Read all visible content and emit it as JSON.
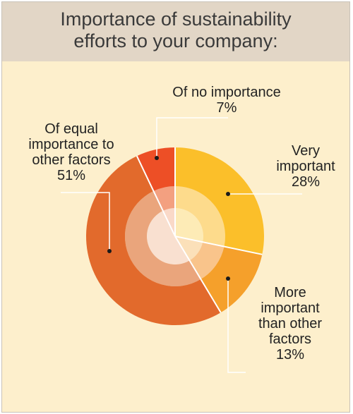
{
  "title_lines": [
    "Importance of sustainability",
    "efforts to your company:"
  ],
  "colors": {
    "header_bg": "#e2d6c6",
    "panel_bg": "#fdefcc",
    "leader_line": "#ffffff",
    "dot": "#1a1a1a"
  },
  "chart_data": {
    "type": "pie",
    "title": "Importance of sustainability efforts to your company:",
    "unit": "%",
    "slices": [
      {
        "name": "Very important",
        "label_lines": [
          "Very",
          "important"
        ],
        "value": 28,
        "value_label": "28%",
        "colors": [
          "#fdebb6",
          "#fddb8c",
          "#fbbf2a"
        ]
      },
      {
        "name": "More important than other factors",
        "label_lines": [
          "More",
          "important",
          "than other",
          "factors"
        ],
        "value": 13,
        "value_label": "13%",
        "colors": [
          "#fbe0b9",
          "#f9c48b",
          "#f5a02b"
        ]
      },
      {
        "name": "Of equal importance to other factors",
        "label_lines": [
          "Of equal",
          "importance to",
          "other factors"
        ],
        "value": 51,
        "value_label": "51%",
        "colors": [
          "#f9e0d0",
          "#eaa57c",
          "#e26a2c"
        ]
      },
      {
        "name": "Of no importance",
        "label_lines": [
          "Of no importance"
        ],
        "value": 7,
        "value_label": "7%",
        "colors": [
          "#fad9c8",
          "#f3a080",
          "#ed4f26"
        ]
      }
    ]
  }
}
